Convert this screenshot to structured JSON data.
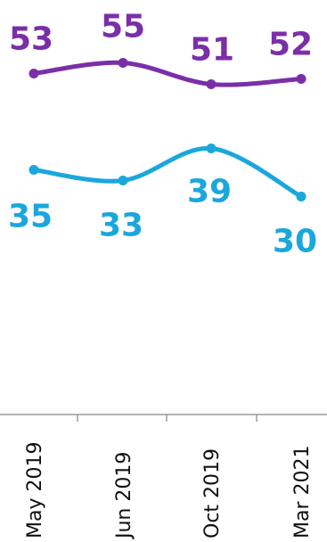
{
  "chart_data": {
    "type": "line",
    "categories": [
      "May 2019",
      "Jun 2019",
      "Oct  2019",
      "Mar 2021"
    ],
    "series": [
      {
        "values": [
          53,
          55,
          51,
          52
        ],
        "color": "#7a2fa8"
      },
      {
        "values": [
          35,
          33,
          39,
          30
        ],
        "color": "#1aa7dc"
      }
    ],
    "title": "",
    "xlabel": "",
    "ylabel": "",
    "grid": false,
    "legend": "none"
  }
}
